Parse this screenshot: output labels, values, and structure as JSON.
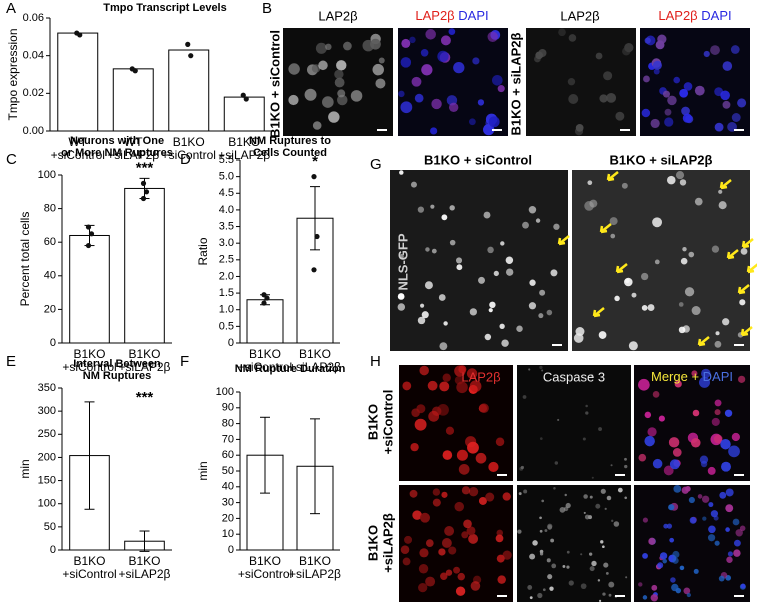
{
  "chart_data": [
    {
      "type": "bar",
      "title": [
        "Tmpo Transcript Levels"
      ],
      "ylabel": "Tmpo expression",
      "categories": [
        [
          "WT",
          "+siControl"
        ],
        [
          "WT",
          "+siLAP2β"
        ],
        [
          "B1KO",
          "+siControl"
        ],
        [
          "B1KO",
          "+siLAP2β"
        ]
      ],
      "values": [
        0.052,
        0.033,
        0.043,
        0.018
      ],
      "points": [
        [
          0.052,
          0.051
        ],
        [
          0.033,
          0.032
        ],
        [
          0.046,
          0.04
        ],
        [
          0.019,
          0.017
        ]
      ],
      "color": "#ffffff",
      "ylim": [
        0,
        0.06
      ],
      "yticks": [
        {
          "value": 0,
          "label": "0.00"
        },
        {
          "value": 0.02,
          "label": "0.02"
        },
        {
          "value": 0.04,
          "label": "0.04"
        },
        {
          "value": 0.06,
          "label": "0.06"
        }
      ]
    },
    {
      "type": "bar",
      "title": [
        "Neurons with One",
        "or More NM Ruptures"
      ],
      "ylabel": "Percent total cells",
      "categories": [
        [
          "B1KO",
          "+siControl"
        ],
        [
          "B1KO",
          "+siLAP2β"
        ]
      ],
      "values": [
        64,
        92
      ],
      "errors": [
        6,
        6
      ],
      "points": [
        [
          69,
          65,
          58
        ],
        [
          95,
          90,
          86
        ]
      ],
      "value_annotations": [
        null,
        "***"
      ],
      "color": "#ffffff",
      "ylim": [
        0,
        100
      ],
      "yticks": [
        0,
        20,
        40,
        60,
        80,
        100
      ]
    },
    {
      "type": "bar",
      "title": [
        "NM Ruptures to",
        "Cells Counted"
      ],
      "ylabel": "Ratio",
      "categories": [
        [
          "B1KO",
          "+siControl"
        ],
        [
          "B1KO",
          "+siLAP2β"
        ]
      ],
      "values": [
        1.3,
        3.75
      ],
      "errors": [
        0.15,
        0.95
      ],
      "points": [
        [
          1.45,
          1.35,
          1.2
        ],
        [
          5.0,
          3.2,
          2.2
        ]
      ],
      "value_annotations": [
        null,
        "*"
      ],
      "color": "#ffffff",
      "ylim": [
        0,
        5.5
      ],
      "yticks": [
        0,
        0.5,
        {
          "value": 1,
          "label": "1.0"
        },
        1.5,
        {
          "value": 2,
          "label": "2.0"
        },
        2.5,
        {
          "value": 3,
          "label": "3.0"
        },
        3.5,
        {
          "value": 4,
          "label": "4.0"
        },
        4.5,
        {
          "value": 5,
          "label": "5.0"
        },
        5.5
      ]
    },
    {
      "type": "bar",
      "title": [
        "Interval Between",
        "NM Ruptures"
      ],
      "ylabel": "min",
      "categories": [
        [
          "B1KO",
          "+siControl"
        ],
        [
          "B1KO",
          "+siLAP2β"
        ]
      ],
      "values": [
        204,
        19
      ],
      "errors": [
        116,
        22
      ],
      "value_annotations": [
        null,
        "***"
      ],
      "color": "#ffffff",
      "ylim": [
        0,
        350
      ],
      "yticks": [
        0,
        50,
        100,
        150,
        200,
        250,
        300,
        350
      ]
    },
    {
      "type": "bar",
      "title": [
        "NM Rupture Duration"
      ],
      "ylabel": "min",
      "categories": [
        [
          "B1KO",
          "+siControl"
        ],
        [
          "B1KO",
          "+siLAP2β"
        ]
      ],
      "values": [
        60,
        53
      ],
      "errors": [
        24,
        30
      ],
      "color": "#ffffff",
      "ylim": [
        0,
        100
      ],
      "yticks": [
        0,
        10,
        20,
        30,
        40,
        50,
        60,
        70,
        80,
        90,
        100
      ]
    }
  ],
  "panel_letters": [
    "A",
    "B",
    "C",
    "D",
    "E",
    "F",
    "G",
    "H"
  ],
  "panel_b": {
    "column_labels": [
      "LAP2β",
      "LAP2β",
      "DAPI",
      "LAP2β",
      "LAP2β",
      "DAPI"
    ],
    "row_labels": [
      "B1KO + siControl",
      "B1KO + siLAP2β"
    ]
  },
  "panel_g": {
    "column_labels": [
      "B1KO + siControl",
      "B1KO + siLAP2β"
    ],
    "channel_label": "NLS-GFP"
  },
  "panel_h": {
    "column_labels": [
      "LAP2β",
      "Caspase 3",
      "Merge +",
      "DAPI"
    ],
    "row_labels": [
      [
        "B1KO",
        "+siControl"
      ],
      [
        "B1KO",
        "+siLAP2β"
      ]
    ]
  }
}
